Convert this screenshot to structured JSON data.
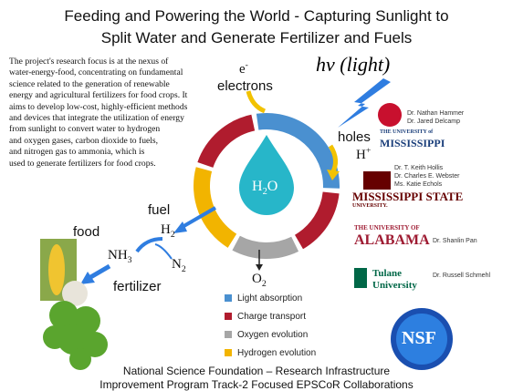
{
  "title": [
    "Feeding and Powering the World - Capturing Sunlight to",
    "Split Water and Generate Fertilizer and Fuels"
  ],
  "description": [
    "The project's research focus is at the nexus of",
    "water-energy-food, concentrating on fundamental",
    "science related to the generation of renewable",
    "energy and agricultural fertilizers  for food crops. It",
    "aims to develop low-cost, highly-efficient methods",
    "and devices that integrate the utilization of energy",
    "from sunlight to convert water to hydrogen",
    "and oxygen gases, carbon dioxide to fuels,",
    "and nitrogen gas to ammonia, which is",
    "used to generate fertilizers  for food crops."
  ],
  "diagram": {
    "light": "hν (light)",
    "electron_symbol": {
      "base": "e",
      "sup": "-"
    },
    "electrons": "electrons",
    "holes": "holes",
    "proton": {
      "base": "H",
      "sup": "+"
    },
    "water": {
      "base": "H",
      "sub": "2",
      "after": "O"
    },
    "fuel": "fuel",
    "hydrogen": {
      "base": "H",
      "sub": "2"
    },
    "food": "food",
    "ammonia": {
      "base": "NH",
      "sub": "3"
    },
    "nitrogen": {
      "base": "N",
      "sub": "2"
    },
    "oxygen": {
      "base": "O",
      "sub": "2"
    },
    "fertilizer": "fertilizer"
  },
  "legend": [
    {
      "name": "Light absorption",
      "color": "#4a90d0"
    },
    {
      "name": "Charge transport",
      "color": "#b01c2e"
    },
    {
      "name": "Oxygen evolution",
      "color": "#a6a6a6"
    },
    {
      "name": "Hydrogen evolution",
      "color": "#f2b400"
    }
  ],
  "partners": [
    {
      "logo": [
        "THE UNIVERSITY of",
        "MISSISSIPPI"
      ],
      "people": [
        "Dr. Nathan Hammer",
        "Dr. Jared Delcamp"
      ]
    },
    {
      "logo": [
        "MISSISSIPPI STATE",
        "UNIVERSITY."
      ],
      "people": [
        "Dr. T. Keith Hollis",
        "Dr. Charles E. Webster",
        "Ms. Katie Echols"
      ]
    },
    {
      "logo": [
        "THE UNIVERSITY OF",
        "ALABAMA"
      ],
      "people": [
        "Dr. Shanlin Pan"
      ]
    },
    {
      "logo": [
        "Tulane",
        "University"
      ],
      "people": [
        "Dr. Russell Schmehl"
      ]
    },
    {
      "logo": [
        "NSF"
      ],
      "people": []
    }
  ],
  "footer": [
    "National Science Foundation – Research Infrastructure",
    "Improvement Program Track-2 Focused EPSCoR Collaborations"
  ]
}
